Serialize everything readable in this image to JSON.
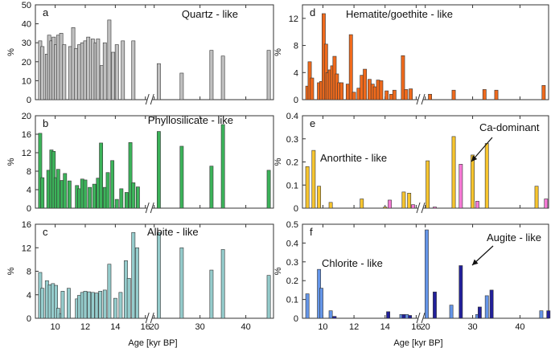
{
  "figure": {
    "xlabel_left": "Age [kyr BP]",
    "xlabel_right": "Age [kyr BP]"
  },
  "chart_data": [
    {
      "id": "a",
      "type": "bar",
      "letter": "a",
      "title": "Quartz - like",
      "ylabel": "%",
      "ylim": [
        0,
        50
      ],
      "yticks": [
        "0",
        "10",
        "20",
        "30",
        "40",
        "50"
      ],
      "show_x_labels": false,
      "series": [
        {
          "name": "Quartz - like",
          "color": "#c0c0c0",
          "x": [
            9.0,
            9.15,
            9.45,
            9.6,
            9.75,
            9.9,
            10.05,
            10.2,
            10.4,
            10.6,
            11.0,
            11.2,
            11.4,
            11.6,
            11.8,
            12.0,
            12.2,
            12.5,
            12.7,
            12.85,
            13.1,
            13.3,
            13.6,
            13.85,
            14.1,
            14.5,
            15.2,
            21.0,
            26.0,
            32.5,
            35.0,
            45.0
          ],
          "values": [
            31,
            28,
            24,
            34,
            31,
            33,
            29,
            34,
            35,
            29,
            28,
            38,
            27,
            29,
            30,
            31,
            33,
            32,
            30,
            32,
            18,
            30,
            42,
            25,
            29,
            31,
            31,
            19,
            14,
            26,
            23,
            26
          ]
        }
      ]
    },
    {
      "id": "b",
      "type": "bar",
      "letter": "b",
      "title": "Phyllosilicate - like",
      "ylabel": "%",
      "ylim": [
        0,
        20
      ],
      "yticks": [
        "0",
        "4",
        "8",
        "12",
        "16",
        "20"
      ],
      "show_x_labels": false,
      "series": [
        {
          "name": "Phyllosilicate - like",
          "color": "#3cb35a",
          "x": [
            9.0,
            9.15,
            9.55,
            9.75,
            9.9,
            10.05,
            10.2,
            10.45,
            10.65,
            10.95,
            11.45,
            11.6,
            11.8,
            12.0,
            12.3,
            12.6,
            12.85,
            13.05,
            13.3,
            13.5,
            13.8,
            14.1,
            14.4,
            14.75,
            15.0,
            15.2,
            15.5,
            21.0,
            26.0,
            32.5,
            35.0,
            45.0
          ],
          "values": [
            16.2,
            6.6,
            8.2,
            12.6,
            12.3,
            6.6,
            8.4,
            6.0,
            7.5,
            5.9,
            4.9,
            4.2,
            6.3,
            6.1,
            4.5,
            5.2,
            6.5,
            14.1,
            4.5,
            7.7,
            10.3,
            1.9,
            4.2,
            3.4,
            14.2,
            5.5,
            4.6,
            16.6,
            13.4,
            9.1,
            18.1,
            8.2
          ]
        }
      ]
    },
    {
      "id": "c",
      "type": "bar",
      "letter": "c",
      "title": "Albite - like",
      "ylabel": "%",
      "ylim": [
        0,
        16
      ],
      "yticks": [
        "0",
        "4",
        "8",
        "12",
        "16"
      ],
      "show_x_labels": true,
      "xtick_labels": [
        "10",
        "12",
        "14",
        "16",
        "20",
        "30",
        "40"
      ],
      "series": [
        {
          "name": "Albite - like",
          "color": "#95cccc",
          "x": [
            9.0,
            9.15,
            9.45,
            9.65,
            9.85,
            10.05,
            10.2,
            10.4,
            10.5,
            10.9,
            11.45,
            11.6,
            11.8,
            12.0,
            12.25,
            12.5,
            12.75,
            13.0,
            13.3,
            13.6,
            14.0,
            14.35,
            14.7,
            14.9,
            15.2,
            15.45,
            21.0,
            26.0,
            32.5,
            35.0,
            45.0
          ],
          "values": [
            7.8,
            5.1,
            6.4,
            5.7,
            5.9,
            5.6,
            1.7,
            0.8,
            4.6,
            5.1,
            3.3,
            3.9,
            4.4,
            4.6,
            4.5,
            4.4,
            4.3,
            4.6,
            4.8,
            9.2,
            3.4,
            4.4,
            9.8,
            6.8,
            14.6,
            12.0,
            14.6,
            12.0,
            8.2,
            11.7,
            7.3
          ]
        }
      ]
    },
    {
      "id": "d",
      "type": "bar",
      "letter": "d",
      "title": "Hematite/goethite - like",
      "ylabel": "%",
      "ylim": [
        0,
        14
      ],
      "yticks": [
        "0",
        "4",
        "8",
        "12"
      ],
      "show_x_labels": false,
      "series": [
        {
          "name": "Hematite/goethite - like",
          "color": "#f06a1c",
          "x": [
            9.0,
            9.15,
            9.3,
            9.75,
            9.9,
            10.05,
            10.2,
            10.3,
            10.45,
            10.6,
            10.75,
            10.9,
            11.05,
            11.2,
            11.6,
            11.8,
            12.0,
            12.3,
            12.5,
            12.7,
            13.0,
            13.2,
            13.35,
            13.55,
            13.75,
            14.1,
            14.4,
            14.6,
            15.15,
            15.35,
            15.65,
            21.0,
            26.0,
            32.5,
            35.0,
            45.0
          ],
          "values": [
            2.0,
            5.6,
            3.2,
            2.5,
            2.7,
            12.7,
            8.2,
            4.0,
            4.4,
            5.0,
            6.4,
            3.8,
            2.5,
            2.5,
            2.3,
            9.6,
            1.1,
            1.7,
            3.6,
            4.5,
            3.0,
            2.3,
            1.9,
            2.9,
            2.8,
            1.3,
            0.8,
            1.4,
            6.5,
            1.5,
            1.6,
            0.8,
            1.4,
            1.5,
            1.4,
            2.1
          ]
        }
      ]
    },
    {
      "id": "e",
      "type": "bar",
      "letter": "e",
      "title": "Anorthite - like",
      "ylabel": "%",
      "ylim": [
        0,
        0.4
      ],
      "yticks": [
        "0",
        "0.1",
        "0.2",
        "0.3",
        "0.4"
      ],
      "show_x_labels": false,
      "annotation": "Ca-dominant",
      "series": [
        {
          "name": "Anorthite - like",
          "color": "#f7c52e",
          "x": [
            9.0,
            9.4,
            9.75,
            10.5,
            12.5,
            14.0,
            15.2,
            15.55,
            20.5,
            26.0,
            30.0,
            33.0,
            43.5
          ],
          "values": [
            0.18,
            0.25,
            0.095,
            0.025,
            0.04,
            0.005,
            0.07,
            0.065,
            0.205,
            0.31,
            0.23,
            0.28,
            0.095
          ]
        },
        {
          "name": "Ca-dominant",
          "color": "#f77ad6",
          "x": [
            14.3,
            15.8,
            22.0,
            27.5,
            31.0,
            45.5
          ],
          "values": [
            0.035,
            0.015,
            0.005,
            0.19,
            0.03,
            0.04
          ]
        }
      ]
    },
    {
      "id": "f",
      "type": "bar",
      "letter": "f",
      "title": "Chlorite - like",
      "ylabel": "%",
      "ylim": [
        0,
        0.5
      ],
      "yticks": [
        "0",
        "0.1",
        "0.2",
        "0.3",
        "0.4",
        "0.5"
      ],
      "show_x_labels": true,
      "xtick_labels": [
        "10",
        "12",
        "14",
        "16",
        "20",
        "30",
        "40"
      ],
      "annotation": "Augite - like",
      "series": [
        {
          "name": "Chlorite - like",
          "color": "#6495e8",
          "x": [
            9.0,
            9.75,
            9.9,
            10.5,
            15.05,
            15.4,
            20.3,
            25.5,
            31.0,
            33.0,
            44.5
          ],
          "values": [
            0.13,
            0.26,
            0.16,
            0.04,
            0.02,
            0.02,
            0.47,
            0.07,
            0.02,
            0.12,
            0.04
          ]
        },
        {
          "name": "Augite - like",
          "color": "#22209a",
          "x": [
            10.75,
            14.2,
            15.2,
            15.6,
            22.0,
            27.5,
            31.5,
            34.0,
            46.0
          ],
          "values": [
            0.01,
            0.035,
            0.02,
            0.015,
            0.14,
            0.28,
            0.06,
            0.15,
            0.04
          ]
        }
      ]
    }
  ]
}
